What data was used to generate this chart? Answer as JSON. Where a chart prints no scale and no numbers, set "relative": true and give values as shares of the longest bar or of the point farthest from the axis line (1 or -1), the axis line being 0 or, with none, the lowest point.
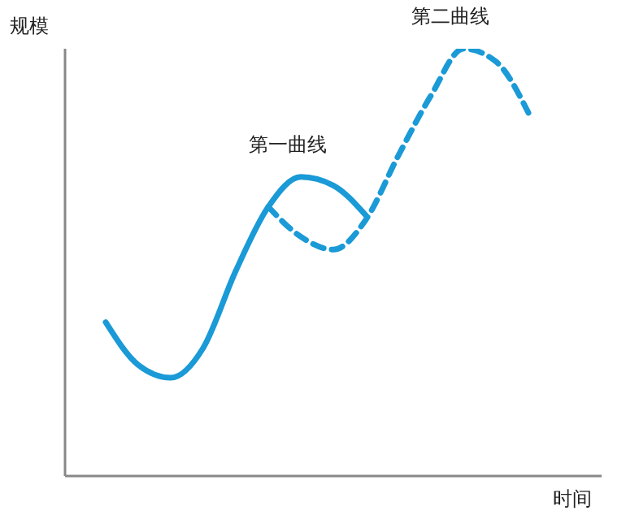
{
  "chart_data": {
    "type": "line",
    "relative": true,
    "xlabel": "时间",
    "ylabel": "规模",
    "categories": [
      null,
      null,
      null,
      null,
      null,
      null,
      null,
      null,
      null,
      null,
      null,
      null,
      null,
      null
    ],
    "grid": false,
    "legend": false,
    "marker": "none",
    "series": [
      {
        "name": "第一曲线",
        "color": "#1a9ad6",
        "line_style": "solid",
        "values": [
          0.36,
          0.26,
          0.23,
          0.3,
          0.48,
          0.63,
          0.7,
          0.68,
          0.61,
          null,
          null,
          null,
          null,
          null
        ]
      },
      {
        "name": "第二曲线",
        "color": "#1a9ad6",
        "line_style": "dashed",
        "values": [
          null,
          null,
          null,
          null,
          null,
          0.63,
          0.56,
          0.53,
          0.6,
          0.75,
          0.89,
          1,
          0.97,
          0.85
        ]
      }
    ]
  }
}
